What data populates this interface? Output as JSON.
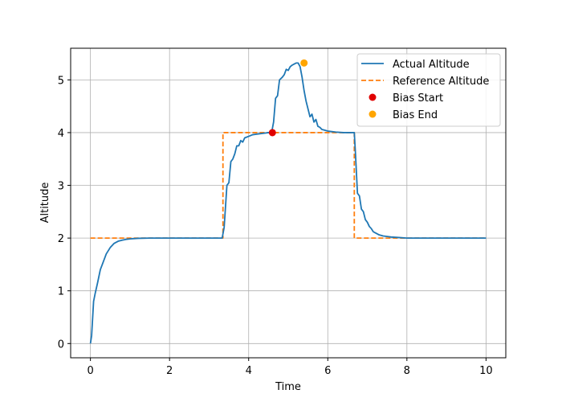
{
  "chart_data": {
    "type": "line",
    "xlabel": "Time",
    "ylabel": "Altitude",
    "xlim": [
      -0.5,
      10.5
    ],
    "ylim": [
      -0.27,
      5.6
    ],
    "x_ticks": [
      0,
      2,
      4,
      6,
      8,
      10
    ],
    "y_ticks": [
      0,
      1,
      2,
      3,
      4,
      5
    ],
    "grid": true,
    "legend_position": "top-right",
    "series": [
      {
        "name": "Actual Altitude",
        "style": "solid",
        "color": "#1f77b4",
        "x": [
          0,
          0.03,
          0.08,
          0.12,
          0.18,
          0.25,
          0.3,
          0.4,
          0.5,
          0.6,
          0.7,
          0.8,
          0.9,
          1.0,
          1.2,
          1.5,
          2.0,
          2.5,
          3.0,
          3.33,
          3.38,
          3.45,
          3.5,
          3.55,
          3.6,
          3.65,
          3.7,
          3.75,
          3.8,
          3.85,
          3.9,
          4.0,
          4.1,
          4.2,
          4.3,
          4.4,
          4.5,
          4.58,
          4.63,
          4.68,
          4.73,
          4.78,
          4.85,
          4.9,
          4.95,
          5.0,
          5.05,
          5.1,
          5.15,
          5.2,
          5.25,
          5.3,
          5.35,
          5.4,
          5.45,
          5.5,
          5.55,
          5.6,
          5.65,
          5.7,
          5.75,
          5.8,
          5.85,
          5.9,
          6.0,
          6.2,
          6.4,
          6.6,
          6.67,
          6.7,
          6.75,
          6.8,
          6.85,
          6.9,
          6.95,
          7.0,
          7.05,
          7.1,
          7.15,
          7.2,
          7.3,
          7.4,
          7.5,
          7.6,
          7.8,
          8.0,
          8.5,
          9.0,
          9.5,
          10.0
        ],
        "y": [
          0.0,
          0.15,
          0.8,
          0.95,
          1.15,
          1.4,
          1.5,
          1.7,
          1.82,
          1.9,
          1.94,
          1.96,
          1.975,
          1.985,
          1.995,
          2.0,
          2.0,
          2.0,
          2.0,
          2.0,
          2.2,
          3.0,
          3.05,
          3.45,
          3.5,
          3.6,
          3.75,
          3.75,
          3.85,
          3.82,
          3.9,
          3.93,
          3.96,
          3.97,
          3.98,
          3.99,
          4.0,
          4.0,
          4.2,
          4.65,
          4.7,
          5.0,
          5.05,
          5.1,
          5.2,
          5.18,
          5.25,
          5.28,
          5.3,
          5.32,
          5.32,
          5.25,
          5.05,
          4.8,
          4.6,
          4.45,
          4.3,
          4.35,
          4.2,
          4.25,
          4.12,
          4.1,
          4.06,
          4.05,
          4.03,
          4.01,
          4.0,
          4.0,
          4.0,
          3.6,
          2.85,
          2.8,
          2.55,
          2.5,
          2.35,
          2.3,
          2.22,
          2.18,
          2.12,
          2.1,
          2.06,
          2.04,
          2.03,
          2.02,
          2.01,
          2.0,
          2.0,
          2.0,
          2.0,
          2.0
        ]
      },
      {
        "name": "Reference Altitude",
        "style": "dashed",
        "color": "#ff7f0e",
        "x": [
          0,
          3.35,
          3.35,
          6.67,
          6.67,
          10.0
        ],
        "y": [
          2,
          2,
          4,
          4,
          2,
          2
        ]
      }
    ],
    "points": [
      {
        "name": "Bias Start",
        "x": 4.6,
        "y": 4.0,
        "color": "#e00000"
      },
      {
        "name": "Bias End",
        "x": 5.4,
        "y": 5.32,
        "color": "#ffa500"
      }
    ]
  }
}
